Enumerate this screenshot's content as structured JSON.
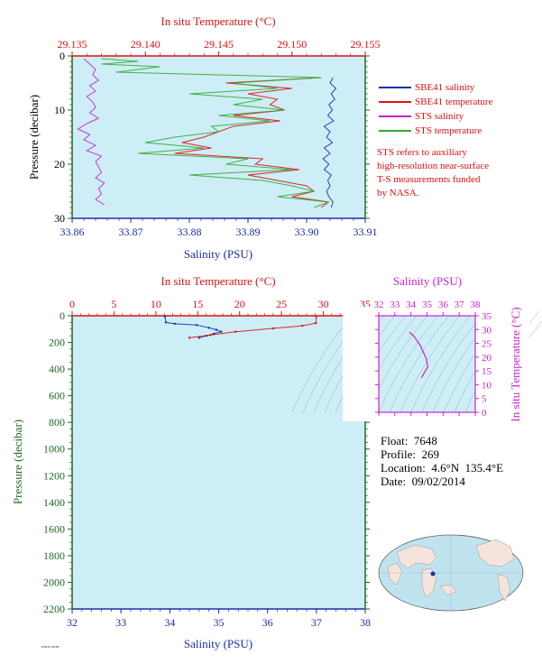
{
  "colors": {
    "plot_bg": "#cdeef7",
    "salinity_axis": "#1a2ea8",
    "temperature_axis": "#dd1111",
    "pressure_axis": "#1e6b1e",
    "sts_axis": "#cc22cc",
    "sbe_salinity": "#1a2ea8",
    "sbe_temperature": "#dd1111",
    "sts_salinity": "#cc22cc",
    "sts_temperature": "#33aa33"
  },
  "legend": {
    "items": [
      {
        "label": "SBE41 salinity",
        "color": "#1a2ea8"
      },
      {
        "label": "SBE41 temperature",
        "color": "#dd1111"
      },
      {
        "label": "STS salinity",
        "color": "#cc22cc"
      },
      {
        "label": "STS temperature",
        "color": "#33aa33"
      }
    ],
    "note_lines": [
      "STS refers to auxiliary",
      "high-resolution near-surface",
      "T-S measurements funded",
      "by NASA."
    ]
  },
  "info": {
    "float": "Float:  7648",
    "profile": "Profile:  269",
    "location": "Location:  4.6°N  135.4°E",
    "date": "Date:  09/02/2014"
  },
  "chart_data": [
    {
      "id": "top",
      "type": "line",
      "title_top": "In situ Temperature (°C)",
      "xlabel": "Salinity (PSU)",
      "ylabel": "Pressure (decibar)",
      "x_sal_range": [
        33.86,
        33.91
      ],
      "x_sal_ticks": [
        "33.86",
        "33.87",
        "33.88",
        "33.89",
        "33.90",
        "33.91"
      ],
      "x_temp_range": [
        29.135,
        29.155
      ],
      "x_temp_ticks": [
        "29.135",
        "29.140",
        "29.145",
        "29.150",
        "29.155"
      ],
      "y_range": [
        0,
        30
      ],
      "y_ticks": [
        "0",
        "10",
        "20",
        "30"
      ],
      "series": [
        {
          "name": "SBE41 salinity",
          "axis": "sal",
          "points": [
            [
              33.9045,
              4
            ],
            [
              33.904,
              5
            ],
            [
              33.905,
              6
            ],
            [
              33.9042,
              7
            ],
            [
              33.9048,
              8
            ],
            [
              33.9038,
              9
            ],
            [
              33.9044,
              10
            ],
            [
              33.9036,
              11
            ],
            [
              33.9046,
              12
            ],
            [
              33.903,
              13
            ],
            [
              33.904,
              14
            ],
            [
              33.9034,
              15
            ],
            [
              33.9044,
              16
            ],
            [
              33.903,
              17
            ],
            [
              33.904,
              18
            ],
            [
              33.9028,
              19
            ],
            [
              33.9038,
              20
            ],
            [
              33.903,
              21
            ],
            [
              33.9042,
              22
            ],
            [
              33.9036,
              23
            ],
            [
              33.904,
              24
            ],
            [
              33.9034,
              25
            ],
            [
              33.9038,
              26
            ],
            [
              33.9045,
              27
            ],
            [
              33.9042,
              28
            ]
          ]
        },
        {
          "name": "SBE41 temperature",
          "axis": "temp",
          "points": [
            [
              29.152,
              4
            ],
            [
              29.1455,
              5
            ],
            [
              29.15,
              6
            ],
            [
              29.147,
              7
            ],
            [
              29.149,
              8
            ],
            [
              29.1485,
              9
            ],
            [
              29.1495,
              10
            ],
            [
              29.146,
              11
            ],
            [
              29.1492,
              12
            ],
            [
              29.146,
              13
            ],
            [
              29.145,
              14
            ],
            [
              29.144,
              15
            ],
            [
              29.1425,
              16
            ],
            [
              29.1445,
              17
            ],
            [
              29.142,
              18
            ],
            [
              29.148,
              19
            ],
            [
              29.1475,
              20
            ],
            [
              29.1505,
              21
            ],
            [
              29.147,
              22
            ],
            [
              29.149,
              23
            ],
            [
              29.151,
              24
            ],
            [
              29.1515,
              25
            ],
            [
              29.15,
              26
            ],
            [
              29.1525,
              27
            ],
            [
              29.152,
              28
            ]
          ]
        },
        {
          "name": "STS salinity",
          "axis": "sal",
          "points": [
            [
              33.862,
              0.5
            ],
            [
              33.863,
              1.5
            ],
            [
              33.864,
              2.5
            ],
            [
              33.8635,
              3.5
            ],
            [
              33.8645,
              4.5
            ],
            [
              33.863,
              5.5
            ],
            [
              33.864,
              6.5
            ],
            [
              33.8625,
              7.5
            ],
            [
              33.8635,
              8.5
            ],
            [
              33.864,
              9.5
            ],
            [
              33.863,
              10.5
            ],
            [
              33.8645,
              11.5
            ],
            [
              33.8625,
              12.5
            ],
            [
              33.861,
              13.5
            ],
            [
              33.863,
              14.5
            ],
            [
              33.862,
              15.5
            ],
            [
              33.864,
              16.5
            ],
            [
              33.8625,
              17.5
            ],
            [
              33.865,
              18.5
            ],
            [
              33.864,
              19.5
            ],
            [
              33.8645,
              20.5
            ],
            [
              33.865,
              21.5
            ],
            [
              33.864,
              22.5
            ],
            [
              33.8655,
              23.5
            ],
            [
              33.8645,
              24.5
            ],
            [
              33.865,
              25.5
            ],
            [
              33.864,
              26.5
            ],
            [
              33.8655,
              27.5
            ]
          ]
        },
        {
          "name": "STS temperature",
          "axis": "temp",
          "points": [
            [
              29.137,
              0.5
            ],
            [
              29.1395,
              1
            ],
            [
              29.137,
              1.5
            ],
            [
              29.141,
              2
            ],
            [
              29.138,
              3
            ],
            [
              29.145,
              3.5
            ],
            [
              29.152,
              4
            ],
            [
              29.146,
              5
            ],
            [
              29.149,
              6
            ],
            [
              29.143,
              7
            ],
            [
              29.148,
              8
            ],
            [
              29.146,
              9
            ],
            [
              29.1495,
              10
            ],
            [
              29.145,
              11
            ],
            [
              29.1485,
              12
            ],
            [
              29.1445,
              13
            ],
            [
              29.145,
              14
            ],
            [
              29.142,
              15
            ],
            [
              29.14,
              16
            ],
            [
              29.144,
              17
            ],
            [
              29.1395,
              18
            ],
            [
              29.147,
              19
            ],
            [
              29.1455,
              20
            ],
            [
              29.15,
              21
            ],
            [
              29.143,
              22
            ],
            [
              29.148,
              23
            ],
            [
              29.15,
              24
            ],
            [
              29.1515,
              25
            ],
            [
              29.149,
              26
            ],
            [
              29.1525,
              27
            ],
            [
              29.1515,
              28
            ]
          ]
        }
      ]
    },
    {
      "id": "bottom",
      "type": "line",
      "title_top": "In situ Temperature (°C)",
      "xlabel": "Salinity (PSU)",
      "ylabel": "Pressure (decibar)",
      "x_sal_range": [
        32,
        38
      ],
      "x_sal_ticks": [
        "32",
        "33",
        "34",
        "35",
        "36",
        "37",
        "38"
      ],
      "x_temp_range": [
        0,
        35
      ],
      "x_temp_ticks": [
        "0",
        "5",
        "10",
        "15",
        "20",
        "25",
        "30",
        "35"
      ],
      "y_range": [
        0,
        2200
      ],
      "y_ticks": [
        "0",
        "200",
        "400",
        "600",
        "800",
        "1000",
        "1200",
        "1400",
        "1600",
        "1800",
        "2000",
        "2200"
      ],
      "series": [
        {
          "name": "SBE41 salinity",
          "axis": "sal",
          "points": [
            [
              33.9,
              5
            ],
            [
              33.92,
              50
            ],
            [
              34.1,
              60
            ],
            [
              34.55,
              70
            ],
            [
              34.8,
              90
            ],
            [
              34.95,
              105
            ],
            [
              35.05,
              120
            ],
            [
              34.9,
              135
            ],
            [
              34.75,
              150
            ],
            [
              34.6,
              165
            ]
          ]
        },
        {
          "name": "SBE41 temperature",
          "axis": "temp",
          "points": [
            [
              29.15,
              5
            ],
            [
              29.1,
              55
            ],
            [
              27.5,
              75
            ],
            [
              24.0,
              95
            ],
            [
              19.5,
              120
            ],
            [
              16.5,
              145
            ],
            [
              14.0,
              165
            ]
          ]
        }
      ]
    },
    {
      "id": "ts-inset",
      "type": "line",
      "title_top": "Salinity (PSU)",
      "ylabel": "In situ Temperature (°C)",
      "x_range": [
        32,
        38
      ],
      "x_ticks": [
        "32",
        "33",
        "34",
        "35",
        "36",
        "37",
        "38"
      ],
      "y_range": [
        0,
        35
      ],
      "y_ticks": [
        "0",
        "5",
        "10",
        "15",
        "20",
        "25",
        "30",
        "35"
      ],
      "series": [
        {
          "name": "SBE41",
          "points": [
            [
              33.9,
              29.1
            ],
            [
              34.2,
              27.5
            ],
            [
              34.6,
              24
            ],
            [
              34.95,
              19.5
            ],
            [
              35.05,
              16.5
            ],
            [
              34.8,
              14
            ],
            [
              34.65,
              12.5
            ]
          ]
        }
      ]
    }
  ]
}
